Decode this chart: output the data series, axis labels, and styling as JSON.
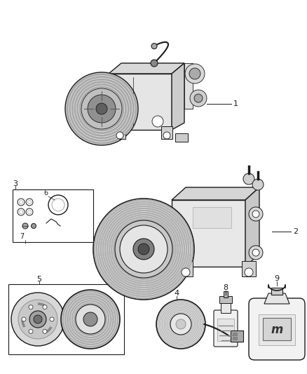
{
  "bg_color": "#ffffff",
  "fig_width": 4.38,
  "fig_height": 5.33,
  "dpi": 100,
  "line_color": "#1a1a1a",
  "gray_light": "#e8e8e8",
  "gray_mid": "#cccccc",
  "gray_dark": "#888888",
  "gray_body": "#f2f2f2"
}
